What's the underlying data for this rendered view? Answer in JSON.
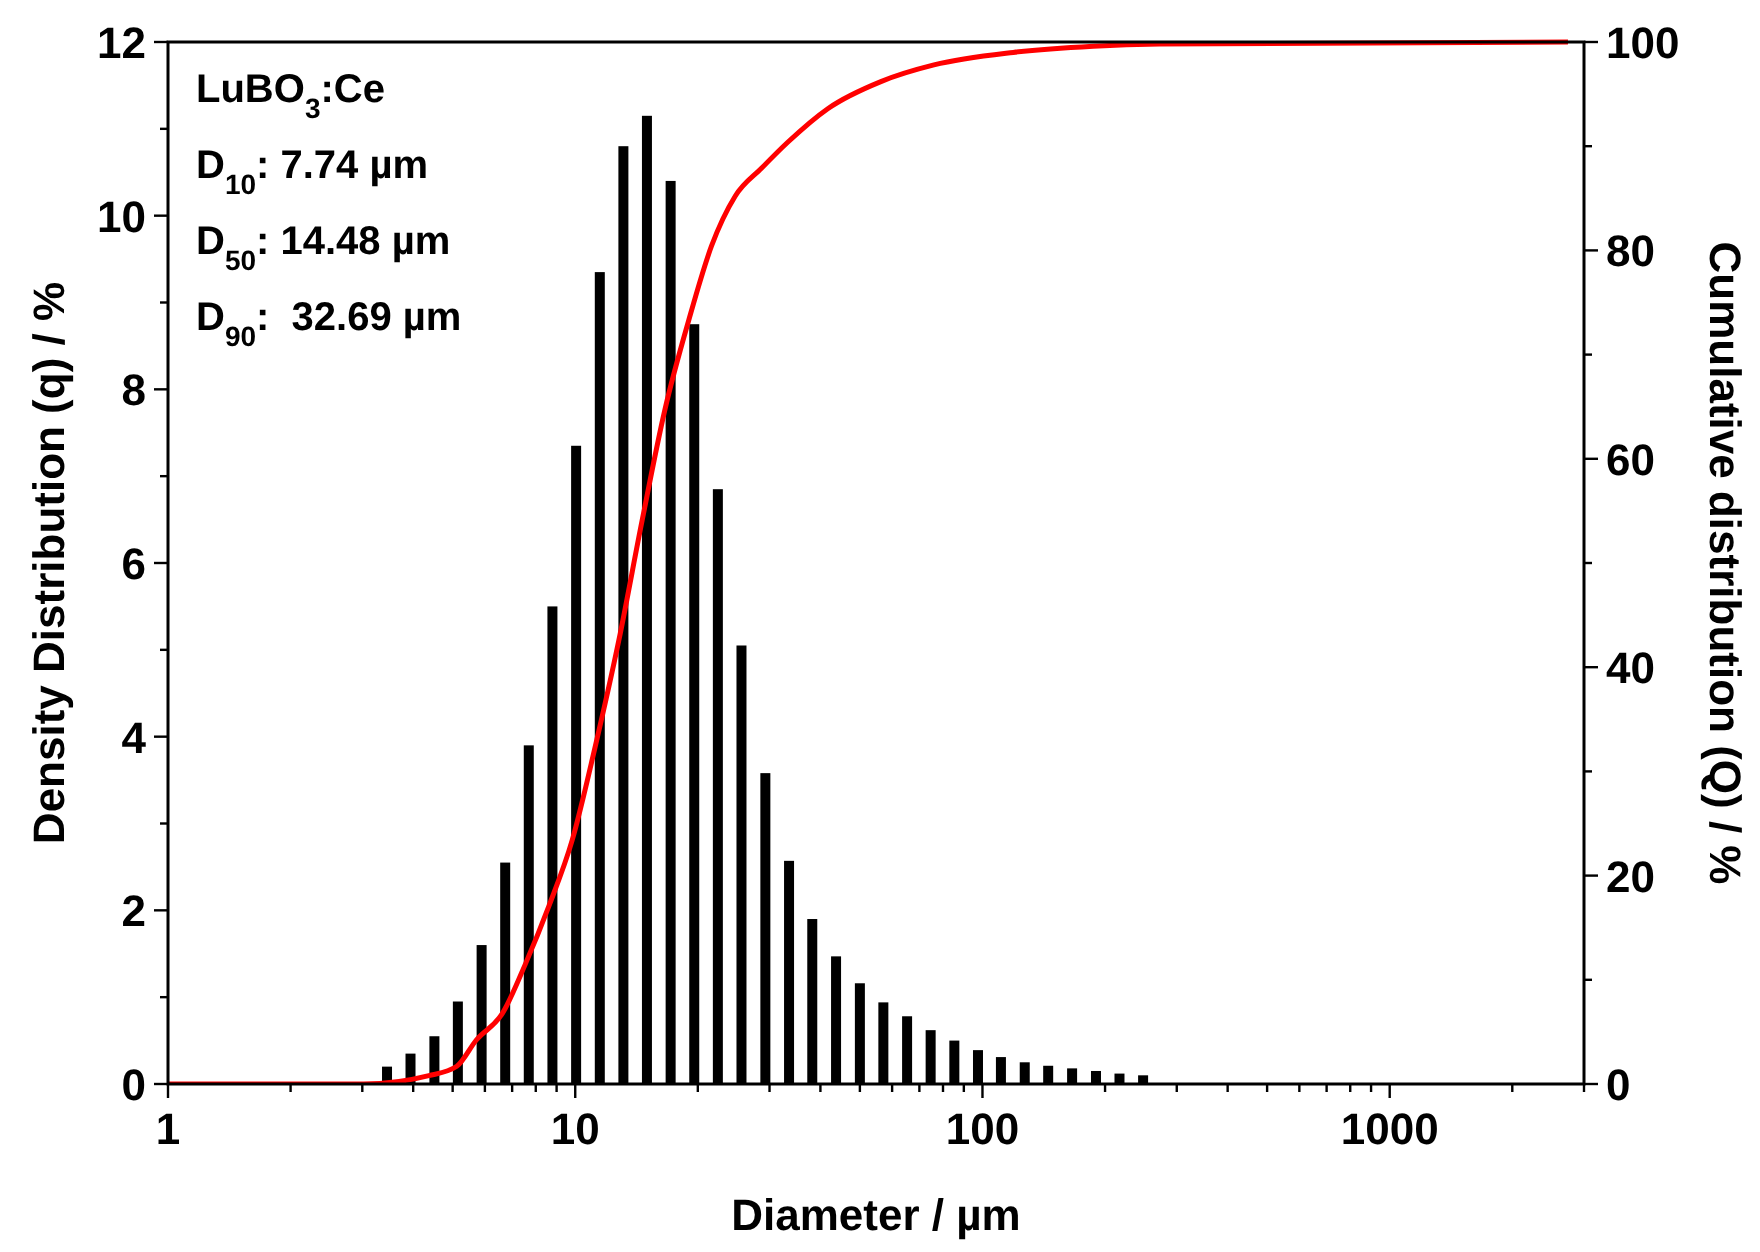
{
  "chart_data": {
    "type": "bar",
    "xlabel": "Diameter / µm",
    "ylabel": "Density Distribution (q) / %",
    "y2label": "Cumulative distribution (Q) / %",
    "log": "x",
    "xlim": [
      1,
      3000
    ],
    "xticks": [
      1,
      {
        "value": 2,
        "label": null
      },
      {
        "value": 3,
        "label": null
      },
      {
        "value": 4,
        "label": null
      },
      {
        "value": 5,
        "label": null
      },
      {
        "value": 6,
        "label": null
      },
      {
        "value": 7,
        "label": null
      },
      {
        "value": 8,
        "label": null
      },
      {
        "value": 9,
        "label": null
      },
      10,
      {
        "value": 20,
        "label": null
      },
      {
        "value": 30,
        "label": null
      },
      {
        "value": 40,
        "label": null
      },
      {
        "value": 50,
        "label": null
      },
      {
        "value": 60,
        "label": null
      },
      {
        "value": 70,
        "label": null
      },
      {
        "value": 80,
        "label": null
      },
      {
        "value": 90,
        "label": null
      },
      100,
      {
        "value": 200,
        "label": null
      },
      {
        "value": 300,
        "label": null
      },
      {
        "value": 400,
        "label": null
      },
      {
        "value": 500,
        "label": null
      },
      {
        "value": 600,
        "label": null
      },
      {
        "value": 700,
        "label": null
      },
      {
        "value": 800,
        "label": null
      },
      {
        "value": 900,
        "label": null
      },
      1000,
      {
        "value": 2000,
        "label": null
      },
      {
        "value": 3000,
        "label": null
      }
    ],
    "ylim": [
      0,
      12
    ],
    "yticks": [
      0,
      {
        "value": 1,
        "label": null
      },
      2,
      {
        "value": 3,
        "label": null
      },
      4,
      {
        "value": 5,
        "label": null
      },
      6,
      {
        "value": 7,
        "label": null
      },
      8,
      {
        "value": 9,
        "label": null
      },
      10,
      {
        "value": 11,
        "label": null
      },
      12
    ],
    "y2lim": [
      0,
      100
    ],
    "y2ticks": [
      0,
      {
        "value": 10,
        "label": null
      },
      20,
      {
        "value": 30,
        "label": null
      },
      40,
      {
        "value": 50,
        "label": null
      },
      60,
      {
        "value": 70,
        "label": null
      },
      80,
      {
        "value": 90,
        "label": null
      },
      100
    ],
    "grid": false,
    "annotations": [
      "LuBO$_{3}$:Ce",
      "D$_{10}$: 7.74 µm",
      "D$_{50}$: 14.48 µm",
      "D$_{90}$:  32.69 µm"
    ],
    "series": [
      {
        "color": "#000000",
        "x": [
          3.45,
          3.94,
          4.51,
          5.15,
          5.89,
          6.73,
          7.69,
          8.79,
          10.05,
          11.49,
          13.13,
          15.0,
          17.15,
          19.6,
          22.4,
          25.6,
          29.3,
          33.5,
          38.2,
          43.7,
          50.0,
          57.1,
          65.3,
          74.6,
          85.3,
          97.5,
          111,
          127,
          145,
          166,
          190,
          217,
          248
        ],
        "values": [
          0.2,
          0.35,
          0.55,
          0.95,
          1.6,
          2.55,
          3.9,
          5.5,
          7.35,
          9.35,
          10.8,
          11.15,
          10.4,
          8.75,
          6.85,
          5.05,
          3.58,
          2.57,
          1.9,
          1.47,
          1.16,
          0.94,
          0.78,
          0.62,
          0.5,
          0.39,
          0.31,
          0.25,
          0.21,
          0.18,
          0.15,
          0.12,
          0.1
        ]
      },
      {
        "type": "line",
        "axis": "y2",
        "color": "#ff0000",
        "x": [
          1,
          3.02,
          4.37,
          5.12,
          5.71,
          6.63,
          7.56,
          8.62,
          9.83,
          11.2,
          12.8,
          14.6,
          16.6,
          19.0,
          21.6,
          24.7,
          28.7,
          33.3,
          41.7,
          56.3,
          76.0,
          119,
          187,
          272,
          2740
        ],
        "values": [
          0,
          0,
          0.8,
          1.7,
          4.2,
          6.8,
          11.6,
          17.1,
          23.4,
          32.4,
          42.6,
          54.1,
          64.7,
          73.3,
          80.4,
          85.2,
          87.9,
          90.4,
          93.6,
          96.2,
          97.8,
          99.0,
          99.6,
          99.8,
          100
        ]
      }
    ]
  }
}
